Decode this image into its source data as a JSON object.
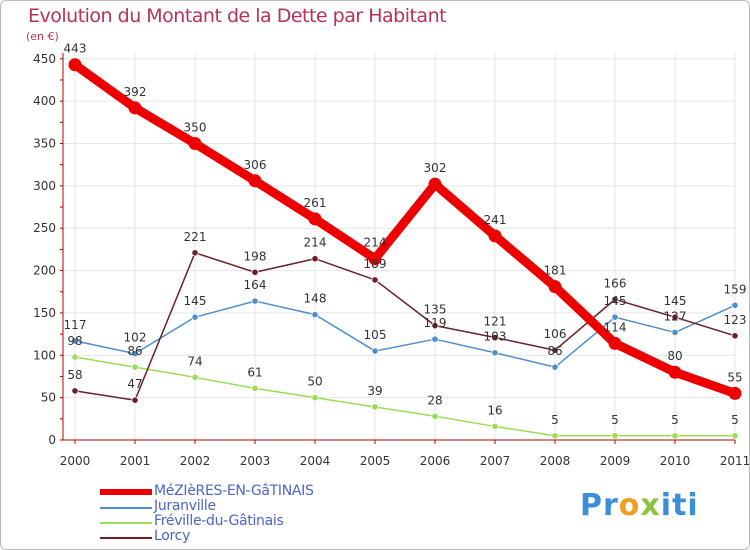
{
  "chart_data": {
    "type": "line",
    "title": "Evolution du Montant de la Dette par Habitant",
    "subtitle": "(en €)",
    "xlabel": "",
    "ylabel": "(en €)",
    "categories": [
      "2000",
      "2001",
      "2002",
      "2003",
      "2004",
      "2005",
      "2006",
      "2007",
      "2008",
      "2009",
      "2010",
      "2011"
    ],
    "ylim": [
      0,
      450
    ],
    "yticks": [
      0,
      50,
      100,
      150,
      200,
      250,
      300,
      350,
      400,
      450
    ],
    "grid": true,
    "legend_position": "bottom-left",
    "series": [
      {
        "name": "MéZIèRES-EN-GâTINAIS",
        "color": "#ee0000",
        "values": [
          443,
          392,
          350,
          306,
          261,
          214,
          302,
          241,
          181,
          114,
          80,
          55
        ]
      },
      {
        "name": "Juranville",
        "color": "#4d8ed0",
        "values": [
          117,
          102,
          145,
          164,
          148,
          105,
          119,
          103,
          86,
          145,
          127,
          159
        ]
      },
      {
        "name": "Fréville-du-Gâtinais",
        "color": "#99dd55",
        "values": [
          98,
          86,
          74,
          61,
          50,
          39,
          28,
          16,
          5,
          5,
          5,
          5
        ]
      },
      {
        "name": "Lorcy",
        "color": "#6b1f2a",
        "values": [
          58,
          47,
          221,
          198,
          214,
          189,
          135,
          121,
          106,
          166,
          145,
          123
        ]
      }
    ]
  },
  "brand": {
    "name": "Proxiti",
    "letters": [
      "P",
      "r",
      "o",
      "x",
      "i",
      "t",
      "i"
    ],
    "colors": [
      "#3b8ed8",
      "#3b8ed8",
      "#f0a020",
      "#8bc43f",
      "#3b8ed8",
      "#3b8ed8",
      "#3b8ed8"
    ]
  }
}
